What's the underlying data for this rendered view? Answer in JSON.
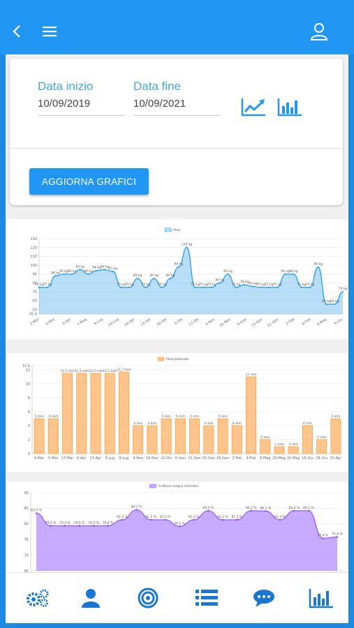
{
  "colors": {
    "primary": "#2196f3",
    "label": "#43a8d8",
    "weight": "#36a2eb",
    "pick": "#ff9f40",
    "fat": "#9966ff"
  },
  "filters": {
    "start_label": "Data inizio",
    "start_value": "10/09/2019",
    "end_label": "Data fine",
    "end_value": "10/09/2021",
    "update_button": "AGGIORNA GRAFICI"
  },
  "chart_data": [
    {
      "type": "line",
      "legend": "Peso",
      "ylim": [
        45,
        130
      ],
      "y_ticks": [
        "130",
        "120",
        "110",
        "100",
        "90",
        "80",
        "70",
        "60",
        "50",
        "45.4"
      ],
      "x_tick_labels": [
        "3-Mar",
        "5-Mar",
        "6-Apr",
        "7-Mag",
        "9-Lug",
        "10-Lug",
        "26-Apr",
        "23-Set",
        "30-Set",
        "6-Ott",
        "13-Ott",
        "4-Nov",
        "26-Nov",
        "9-Gen",
        "13-Gen",
        "21-Gen",
        "2-Feb",
        "6-Feb",
        "6-Mag",
        "9-Giu"
      ],
      "values": [
        75,
        75,
        88,
        90,
        90,
        95,
        90,
        94,
        95,
        93,
        75,
        75,
        85,
        75,
        85,
        75,
        85,
        98,
        120,
        75,
        75,
        75,
        80,
        90,
        75,
        78,
        76,
        75,
        75,
        75,
        90,
        90,
        75,
        75,
        98,
        56,
        56,
        70
      ],
      "labels": [
        "75 kg",
        "75 kg",
        "88 kg",
        "90 kg",
        "90 kg",
        "95 kg",
        "90 kg",
        "94 kg",
        "95 kg",
        "93 kg",
        "75 kg",
        "75 kg",
        "85 kg",
        "75 kg",
        "85 kg",
        "75 kg",
        "85 kg",
        "98 kg",
        "120 kg",
        "75 kg",
        "75 kg",
        "75 kg",
        "80 kg",
        "90 kg",
        "75 kg",
        "78 kg",
        "76 kg",
        "75 kg",
        "75 kg",
        "75 kg",
        "90 kg",
        "90 kg",
        "75 kg",
        "75 kg",
        "98 kg",
        "56 kg",
        "56 kg",
        "70 kg"
      ]
    },
    {
      "type": "bar",
      "legend": "Plica pettorale",
      "ylim": [
        0,
        12.6
      ],
      "y_ticks": [
        "12.6",
        "12",
        "10",
        "8",
        "6",
        "4",
        "2",
        "0"
      ],
      "categories": [
        "4-Mar",
        "5-Mar",
        "17-Mar",
        "6-Apr",
        "23-Apr",
        "3-Lug",
        "9-Lug",
        "4-Nov",
        "16-Nov",
        "22-Dic",
        "6-Gen",
        "11-Gen",
        "15-Gen",
        "16-Gen",
        "2-Feb",
        "9-Feb",
        "6-Mag",
        "20-Mag",
        "25-Mag",
        "16-Giu",
        "29-Giu",
        "25-Apr"
      ],
      "values": [
        5,
        5,
        11.5,
        11.5,
        11.5,
        11.5,
        11.7,
        4,
        4,
        5,
        5,
        5,
        4,
        5,
        4,
        11,
        2,
        1,
        1,
        4,
        2,
        5
      ],
      "labels": [
        "5 mm",
        "5 mm",
        "11.5 mm",
        "11.5 mm",
        "11.5 mm",
        "11.5 mm",
        "11.7 mm",
        "4 mm",
        "4 mm",
        "5 mm",
        "5 mm",
        "5 mm",
        "4 mm",
        "5 mm",
        "4 mm",
        "11 mm",
        "2 mm",
        "1 mm",
        "1 mm",
        "4 mm",
        "2 mm",
        "5 mm"
      ]
    },
    {
      "type": "area",
      "legend": "% Massa magra (stimato)",
      "ylim": [
        65,
        90
      ],
      "y_ticks": [
        "90",
        "85",
        "80",
        "75",
        "70",
        "65"
      ],
      "values": [
        83.4,
        79.4,
        79.4,
        79.4,
        79.4,
        79.4,
        81.3,
        84.5,
        81.3,
        81.3,
        79.2,
        81.3,
        84.2,
        81.3,
        81.3,
        84.2,
        84.1,
        81.3,
        84.2,
        84.2,
        75.4,
        75.8
      ],
      "labels": [
        "83.4 %",
        "79.4 %",
        "79.4 %",
        "79.4 %",
        "79.4 %",
        "79.4 %",
        "81.3 %",
        "84.5 %",
        "81.3 %",
        "81.3 %",
        "79.2 %",
        "81.3 %",
        "84.2 %",
        "81.3 %",
        "81.3 %",
        "84.2 %",
        "84.1 %",
        "81.3 %",
        "84.2 %",
        "84.2 %",
        "75.4 %",
        "75.8 %"
      ]
    }
  ],
  "icons": [
    "back-arrow-icon",
    "menu-icon",
    "user-outline-icon",
    "line-chart-icon",
    "bar-chart-icon",
    "gears-icon",
    "user-icon",
    "target-icon",
    "list-icon",
    "chat-icon",
    "bar-chart-nav-icon"
  ]
}
